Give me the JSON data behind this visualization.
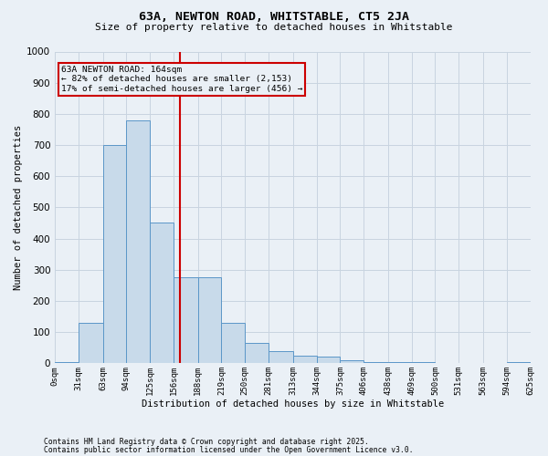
{
  "title1": "63A, NEWTON ROAD, WHITSTABLE, CT5 2JA",
  "title2": "Size of property relative to detached houses in Whitstable",
  "xlabel": "Distribution of detached houses by size in Whitstable",
  "ylabel": "Number of detached properties",
  "footnote1": "Contains HM Land Registry data © Crown copyright and database right 2025.",
  "footnote2": "Contains public sector information licensed under the Open Government Licence v3.0.",
  "bin_edges": [
    0,
    31,
    63,
    94,
    125,
    156,
    188,
    219,
    250,
    281,
    313,
    344,
    375,
    406,
    438,
    469,
    500,
    531,
    563,
    594,
    625
  ],
  "bar_heights": [
    5,
    130,
    700,
    780,
    450,
    275,
    275,
    130,
    65,
    40,
    25,
    20,
    10,
    5,
    5,
    5,
    0,
    0,
    0,
    5
  ],
  "bar_color": "#c8daea",
  "bar_edge_color": "#5b96c8",
  "grid_color": "#c8d4e0",
  "background_color": "#eaf0f6",
  "red_line_x": 164,
  "annotation_text_line1": "63A NEWTON ROAD: 164sqm",
  "annotation_text_line2": "← 82% of detached houses are smaller (2,153)",
  "annotation_text_line3": "17% of semi-detached houses are larger (456) →",
  "annotation_box_color": "#cc0000",
  "ylim": [
    0,
    1000
  ],
  "yticks": [
    0,
    100,
    200,
    300,
    400,
    500,
    600,
    700,
    800,
    900,
    1000
  ]
}
